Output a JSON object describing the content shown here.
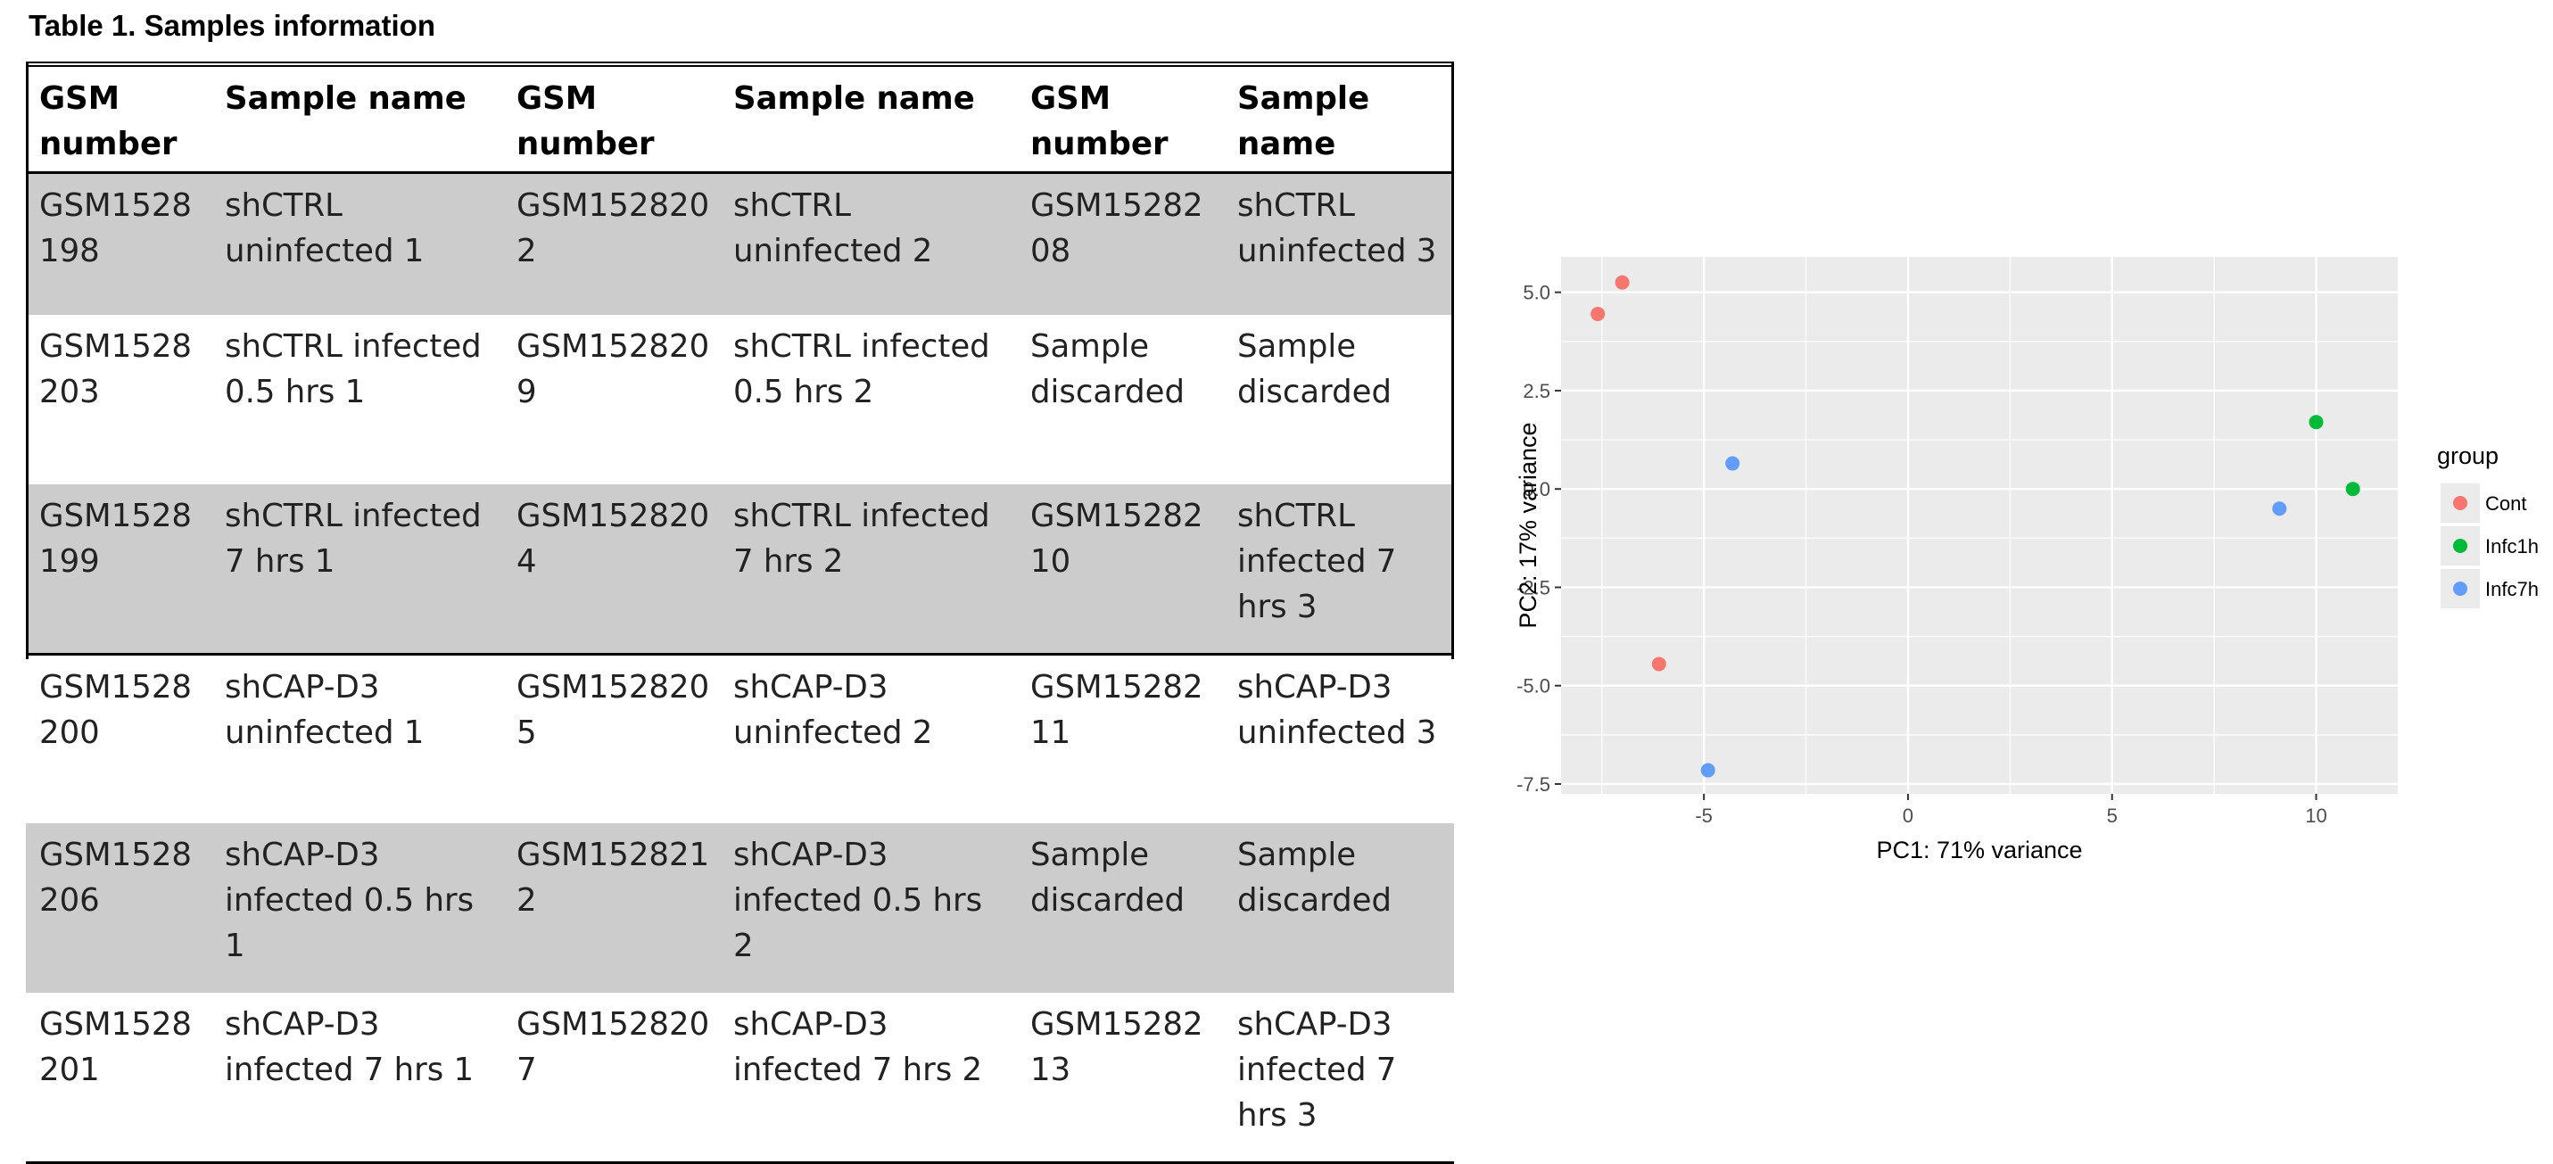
{
  "table": {
    "title": "Table 1. Samples information",
    "headers": [
      "GSM number",
      "Sample name",
      "GSM number",
      "Sample name",
      "GSM number",
      "Sample name"
    ],
    "rows": [
      [
        "GSM1528198",
        "shCTRL uninfected 1",
        "GSM1528202",
        "shCTRL uninfected 2",
        "GSM1528208",
        "shCTRL uninfected 3"
      ],
      [
        "GSM1528203",
        "shCTRL infected 0.5 hrs 1",
        "GSM1528209",
        "shCTRL infected 0.5 hrs 2",
        "Sample discarded",
        "Sample discarded"
      ],
      [
        "GSM1528199",
        "shCTRL infected 7 hrs 1",
        "GSM1528204",
        "shCTRL infected 7 hrs 2",
        "GSM1528210",
        "shCTRL infected 7 hrs 3"
      ],
      [
        "GSM1528200",
        "shCAP-D3 uninfected 1",
        "GSM1528205",
        "shCAP-D3 uninfected 2",
        "GSM1528211",
        "shCAP-D3 uninfected 3"
      ],
      [
        "GSM1528206",
        "shCAP-D3 infected 0.5 hrs 1",
        "GSM1528212",
        "shCAP-D3 infected 0.5 hrs 2",
        "Sample discarded",
        "Sample discarded"
      ],
      [
        "GSM1528201",
        "shCAP-D3 infected 7 hrs 1",
        "GSM1528207",
        "shCAP-D3 infected 7 hrs 2",
        "GSM1528213",
        "shCAP-D3 infected 7 hrs 3"
      ]
    ]
  },
  "chart_data": {
    "type": "scatter",
    "xlabel": "PC1: 71% variance",
    "ylabel": "PC2: 17% variance",
    "xlim": [
      -8.5,
      12
    ],
    "ylim": [
      -7.75,
      5.9
    ],
    "xticks": [
      -5,
      0,
      5,
      10
    ],
    "xtick_labels": [
      "-5",
      "0",
      "5",
      "10"
    ],
    "yticks": [
      -7.5,
      -5.0,
      -2.5,
      0.0,
      2.5,
      5.0
    ],
    "ytick_labels": [
      "-7.5",
      "-5.0",
      "-2.5",
      "0.0",
      "2.5",
      "5.0"
    ],
    "grid": true,
    "legend_title": "group",
    "legend_position": "right",
    "series": [
      {
        "name": "Cont",
        "color": "#F8766D",
        "points": [
          [
            -7.6,
            4.45
          ],
          [
            -7.0,
            5.25
          ],
          [
            -6.1,
            -4.45
          ]
        ]
      },
      {
        "name": "Infc1h",
        "color": "#00BA38",
        "points": [
          [
            10.0,
            1.7
          ],
          [
            10.9,
            0.0
          ]
        ]
      },
      {
        "name": "Infc7h",
        "color": "#619CFF",
        "points": [
          [
            -4.9,
            -7.15
          ],
          [
            -4.3,
            0.65
          ],
          [
            9.1,
            -0.5
          ]
        ]
      }
    ]
  }
}
